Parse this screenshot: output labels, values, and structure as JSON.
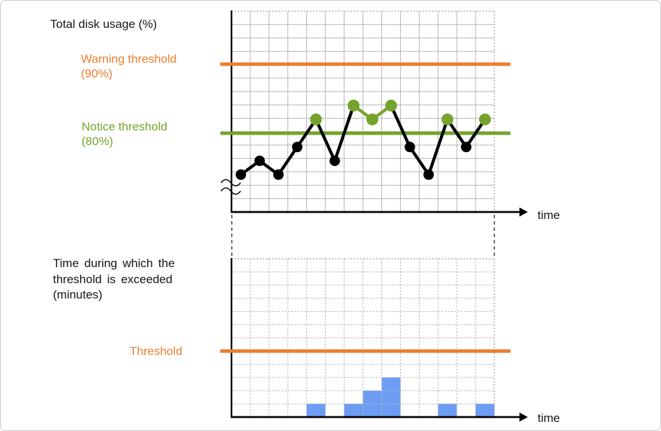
{
  "top_chart": {
    "title": "Total disk usage (%)",
    "warning_label": {
      "line1": "Warning threshold",
      "line2": "(90%)"
    },
    "notice_label": {
      "line1": "Notice threshold",
      "line2": "(80%)"
    },
    "time_label": "time"
  },
  "bottom_chart": {
    "ylabel_lines": [
      "Time during which the",
      "threshold is exceeded",
      "(minutes)"
    ],
    "threshold_label": "Threshold",
    "time_label": "time"
  },
  "chart_data": [
    {
      "type": "line",
      "title": "Total disk usage (%)",
      "xlabel": "time",
      "ylabel": "Total disk usage (%)",
      "x": [
        1,
        2,
        3,
        4,
        5,
        6,
        7,
        8,
        9,
        10,
        11,
        12,
        13,
        14
      ],
      "values": [
        74,
        76,
        74,
        78,
        82,
        76,
        84,
        82,
        84,
        78,
        74,
        82,
        78,
        82
      ],
      "unit": "percent",
      "thresholds": [
        {
          "name": "Warning threshold",
          "value": 90,
          "color": "#ED7D31"
        },
        {
          "name": "Notice threshold",
          "value": 80,
          "color": "#76A32B"
        }
      ],
      "line_color": "#000000",
      "point_color_default": "#000000",
      "point_color_exceed": "#76A32B",
      "y_axis_break": true,
      "y_visible_range": [
        68.6,
        97.7
      ],
      "grid": {
        "cols": 14,
        "rows": 15,
        "visible": true
      },
      "legend": "none"
    },
    {
      "type": "bar",
      "title": "Time during which the threshold is exceeded (minutes)",
      "xlabel": "time",
      "ylabel": "Time during which the threshold is exceeded (minutes)",
      "x": [
        1,
        2,
        3,
        4,
        5,
        6,
        7,
        8,
        9,
        10,
        11,
        12,
        13,
        14
      ],
      "values": [
        0,
        0,
        0,
        0,
        1,
        0,
        1,
        2,
        3,
        0,
        0,
        1,
        0,
        1
      ],
      "unit": "minutes",
      "bar_color": "#6C9CF4",
      "threshold": {
        "name": "Threshold",
        "value": 5,
        "color": "#ED7D31"
      },
      "ylim": [
        0,
        12
      ],
      "grid": {
        "cols": 14,
        "rows": 12,
        "visible": true
      },
      "legend": "none"
    }
  ]
}
